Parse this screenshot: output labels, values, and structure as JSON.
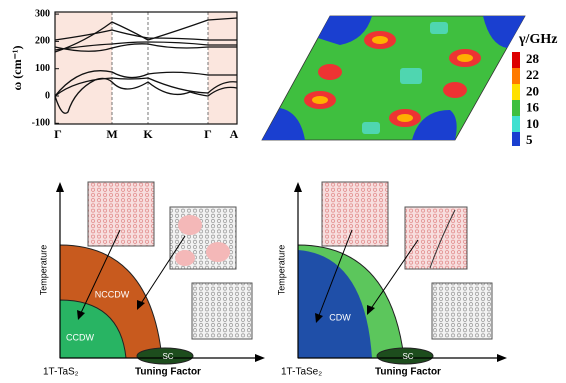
{
  "band_structure": {
    "y_axis_label": "ω (cm⁻¹)",
    "yticks": [
      300,
      200,
      100,
      0,
      -100
    ],
    "x_points": [
      "Γ",
      "M",
      "K",
      "Γ",
      "A"
    ]
  },
  "map": {
    "colorbar_title": "γ/GHz",
    "colorbar_ticks": [
      28,
      22,
      20,
      16,
      10,
      5
    ]
  },
  "phase_diagrams": [
    {
      "y_axis_label": "Temperature",
      "x_axis_start": "1T-TaS₂",
      "x_axis_label": "Tuning Factor",
      "regions": [
        "NCCDW",
        "CCDW",
        "SC"
      ]
    },
    {
      "y_axis_label": "Temperature",
      "x_axis_start": "1T-TaSe₂",
      "x_axis_label": "Tuning Factor",
      "regions": [
        "CDW",
        "SC"
      ]
    }
  ]
}
